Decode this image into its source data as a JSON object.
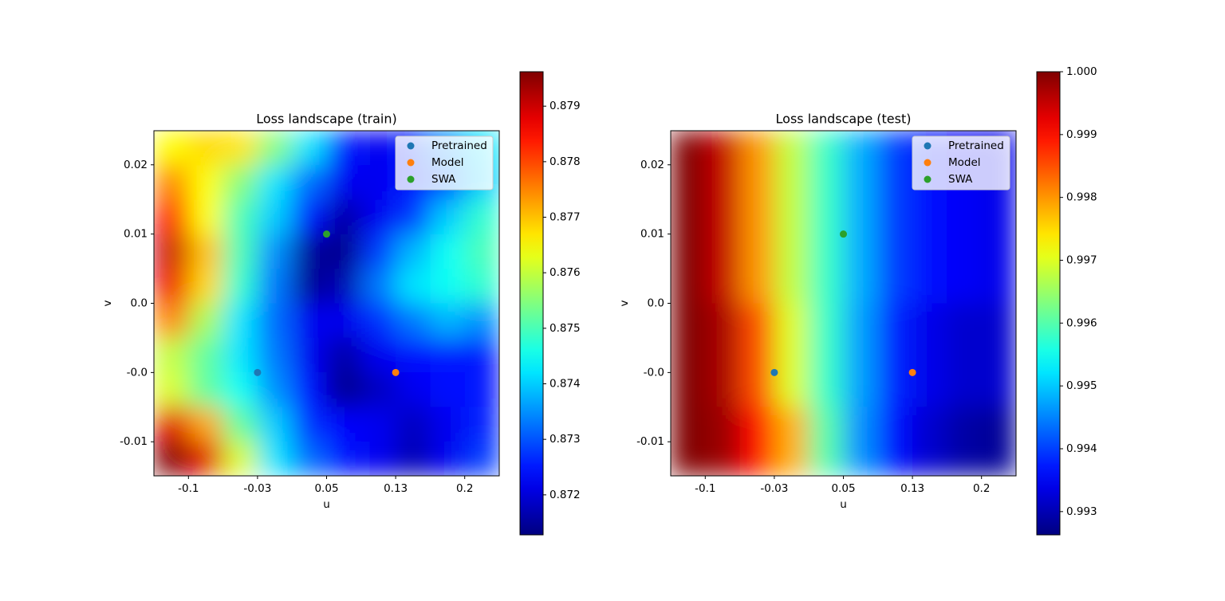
{
  "chart_data": [
    {
      "type": "heatmap",
      "title": "Loss landscape (train)",
      "xlabel": "u",
      "ylabel": "v",
      "xlim": [
        -0.1375,
        0.2375
      ],
      "ylim": [
        -0.0132,
        0.0192
      ],
      "xticks": [
        -0.1,
        {
          "value": -0.025,
          "label": "-0.03"
        },
        0.05,
        {
          "value": 0.125,
          "label": "0.13"
        },
        0.2
      ],
      "yticks": [
        {
          "value": 0.016,
          "label": "0.02"
        },
        {
          "value": 0.0095,
          "label": "0.01"
        },
        {
          "value": 0.003,
          "label": "0.0"
        },
        {
          "value": -0.0035,
          "label": "-0.0"
        },
        -0.01
      ],
      "colormap": "jet",
      "clim": [
        0.87128,
        0.87962
      ],
      "cticks": [
        0.872,
        0.873,
        0.874,
        0.875,
        0.876,
        0.877,
        0.878,
        0.879
      ],
      "z": [
        [
          0.8765,
          0.8768,
          0.8767,
          0.8755,
          0.8742,
          0.8725,
          0.8722,
          0.8725,
          0.8735,
          0.8742
        ],
        [
          0.8775,
          0.8765,
          0.8755,
          0.8742,
          0.8732,
          0.8722,
          0.8722,
          0.8725,
          0.873,
          0.874
        ],
        [
          0.8785,
          0.8765,
          0.875,
          0.874,
          0.8725,
          0.8716,
          0.8722,
          0.8728,
          0.874,
          0.8748
        ],
        [
          0.879,
          0.877,
          0.875,
          0.8735,
          0.8715,
          0.8714,
          0.8728,
          0.8738,
          0.8745,
          0.875
        ],
        [
          0.8787,
          0.8768,
          0.8748,
          0.8733,
          0.8715,
          0.8717,
          0.8733,
          0.8742,
          0.8745,
          0.8748
        ],
        [
          0.8775,
          0.8758,
          0.8742,
          0.8732,
          0.8722,
          0.8722,
          0.8727,
          0.8733,
          0.8738,
          0.8735
        ],
        [
          0.876,
          0.8752,
          0.8742,
          0.8733,
          0.8722,
          0.8716,
          0.8722,
          0.8724,
          0.8725,
          0.8725
        ],
        [
          0.8762,
          0.8752,
          0.8745,
          0.8735,
          0.8724,
          0.8714,
          0.8718,
          0.8722,
          0.8724,
          0.8725
        ],
        [
          0.8788,
          0.8772,
          0.8752,
          0.874,
          0.8727,
          0.8723,
          0.8722,
          0.8718,
          0.8722,
          0.8726
        ],
        [
          0.8796,
          0.8788,
          0.8762,
          0.8742,
          0.8732,
          0.8725,
          0.8722,
          0.8717,
          0.8722,
          0.8728
        ]
      ],
      "legend": "upper right",
      "series": [
        {
          "name": "Pretrained",
          "color": "#1f77b4",
          "x": [
            -0.025
          ],
          "values": [
            -0.0035
          ]
        },
        {
          "name": "Model",
          "color": "#ff7f0e",
          "x": [
            0.125
          ],
          "values": [
            -0.0035
          ]
        },
        {
          "name": "SWA",
          "color": "#2ca02c",
          "x": [
            0.05
          ],
          "values": [
            0.0095
          ]
        }
      ]
    },
    {
      "type": "heatmap",
      "title": "Loss landscape (test)",
      "xlabel": "u",
      "ylabel": "v",
      "xlim": [
        -0.1375,
        0.2375
      ],
      "ylim": [
        -0.0132,
        0.0192
      ],
      "xticks": [
        -0.1,
        {
          "value": -0.025,
          "label": "-0.03"
        },
        0.05,
        {
          "value": 0.125,
          "label": "0.13"
        },
        0.2
      ],
      "yticks": [
        {
          "value": 0.016,
          "label": "0.02"
        },
        {
          "value": 0.0095,
          "label": "0.01"
        },
        {
          "value": 0.003,
          "label": "0.0"
        },
        {
          "value": -0.0035,
          "label": "-0.0"
        },
        -0.01
      ],
      "colormap": "jet",
      "clim": [
        0.99263,
        1.0
      ],
      "cticks": [
        0.993,
        0.994,
        0.995,
        0.996,
        0.997,
        0.998,
        0.999,
        {
          "value": 1,
          "label": "1.000"
        }
      ],
      "z": [
        [
          1.0,
          0.9995,
          0.998,
          0.9968,
          0.9958,
          0.9948,
          0.994,
          0.9936,
          0.9935,
          0.9934
        ],
        [
          1.0,
          0.9995,
          0.998,
          0.9968,
          0.9958,
          0.9948,
          0.994,
          0.9936,
          0.9935,
          0.9934
        ],
        [
          1.0,
          0.9995,
          0.998,
          0.9968,
          0.9958,
          0.9948,
          0.994,
          0.9936,
          0.9935,
          0.9934
        ],
        [
          1.0,
          0.9995,
          0.998,
          0.9968,
          0.9958,
          0.9948,
          0.994,
          0.9936,
          0.9935,
          0.9934
        ],
        [
          1.0,
          0.9995,
          0.998,
          0.9968,
          0.9958,
          0.9948,
          0.994,
          0.9936,
          0.9935,
          0.9934
        ],
        [
          1.0,
          0.9997,
          0.9985,
          0.997,
          0.9958,
          0.9947,
          0.9938,
          0.9934,
          0.9932,
          0.9932
        ],
        [
          1.0,
          0.9997,
          0.9985,
          0.997,
          0.9958,
          0.9947,
          0.9938,
          0.9934,
          0.9932,
          0.9932
        ],
        [
          1.0,
          0.9997,
          0.9985,
          0.997,
          0.9958,
          0.9947,
          0.9938,
          0.9934,
          0.9932,
          0.9932
        ],
        [
          1.0,
          0.9998,
          0.999,
          0.9978,
          0.996,
          0.9946,
          0.9936,
          0.9932,
          0.9929,
          0.9928
        ],
        [
          1.0,
          0.9998,
          0.999,
          0.9978,
          0.996,
          0.9946,
          0.9936,
          0.9932,
          0.9929,
          0.9928
        ]
      ],
      "legend": "upper right",
      "series": [
        {
          "name": "Pretrained",
          "color": "#1f77b4",
          "x": [
            -0.025
          ],
          "values": [
            -0.0035
          ]
        },
        {
          "name": "Model",
          "color": "#ff7f0e",
          "x": [
            0.125
          ],
          "values": [
            -0.0035
          ]
        },
        {
          "name": "SWA",
          "color": "#2ca02c",
          "x": [
            0.05
          ],
          "values": [
            0.0095
          ]
        }
      ]
    }
  ]
}
